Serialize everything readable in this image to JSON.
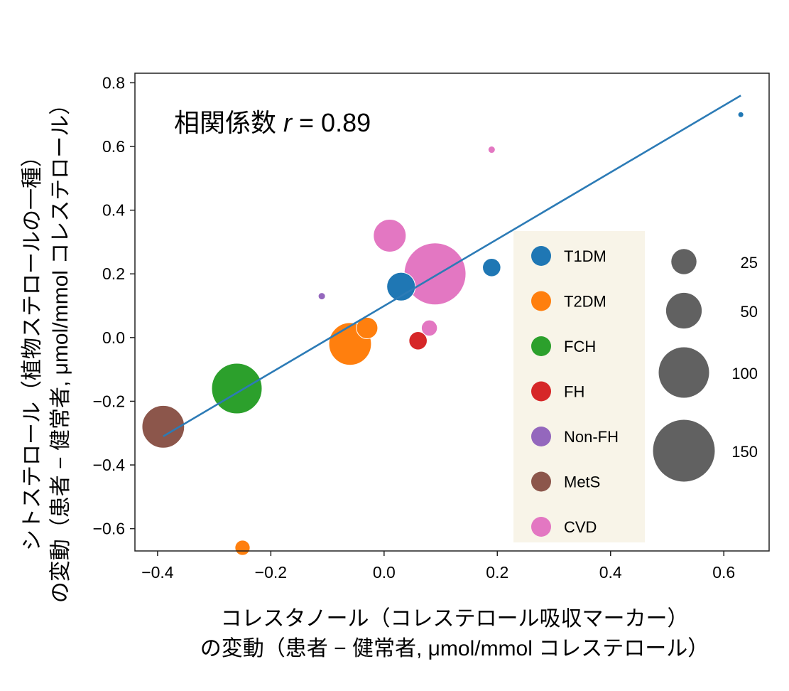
{
  "chart_data": {
    "type": "scatter",
    "annotation": {
      "prefix": "相関係数 ",
      "var": "r",
      "suffix": " = 0.89"
    },
    "ylabel_lines": [
      "シトステロール（植物ステロールの一種）",
      "の変動（患者 − 健常者, μmol/mmol コレステロール）"
    ],
    "xlabel_lines": [
      "コレスタノール（コレステロール吸収マーカー）",
      "の変動（患者 − 健常者, μmol/mmol コレステロール）"
    ],
    "xlim": [
      -0.44,
      0.68
    ],
    "ylim": [
      -0.67,
      0.83
    ],
    "xticks": [
      -0.4,
      -0.2,
      0.0,
      0.2,
      0.4,
      0.6
    ],
    "xtick_labels": [
      "−0.4",
      "−0.2",
      "0.0",
      "0.2",
      "0.4",
      "0.6"
    ],
    "yticks": [
      0.8,
      0.6,
      0.4,
      0.2,
      0.0,
      -0.2,
      -0.4,
      -0.6
    ],
    "ytick_labels": [
      "0.8",
      "0.6",
      "0.4",
      "0.2",
      "0.0",
      "−0.2",
      "−0.4",
      "−0.6"
    ],
    "grid": false,
    "legend_placement": "center-right",
    "legend_background": "#f8f4e8",
    "groups": [
      {
        "name": "T1DM",
        "color": "#1f77b4"
      },
      {
        "name": "T2DM",
        "color": "#ff7f0e"
      },
      {
        "name": "FCH",
        "color": "#2ca02c"
      },
      {
        "name": "FH",
        "color": "#d62728"
      },
      {
        "name": "Non-FH",
        "color": "#9467bd"
      },
      {
        "name": "MetS",
        "color": "#8c564b"
      },
      {
        "name": "CVD",
        "color": "#e377c2"
      }
    ],
    "size_legend": {
      "color": "#616161",
      "values": [
        25,
        50,
        100,
        150
      ],
      "labels": [
        "25",
        "50",
        "100",
        "150"
      ]
    },
    "points": [
      {
        "group": "CVD",
        "x": 0.09,
        "y": 0.2,
        "size": 150
      },
      {
        "group": "FCH",
        "x": -0.26,
        "y": -0.16,
        "size": 100
      },
      {
        "group": "MetS",
        "x": -0.39,
        "y": -0.28,
        "size": 71
      },
      {
        "group": "T2DM",
        "x": -0.06,
        "y": -0.02,
        "size": 71
      },
      {
        "group": "CVD",
        "x": 0.01,
        "y": 0.32,
        "size": 42
      },
      {
        "group": "T1DM",
        "x": 0.03,
        "y": 0.16,
        "size": 32
      },
      {
        "group": "T2DM",
        "x": -0.03,
        "y": 0.03,
        "size": 18
      },
      {
        "group": "T1DM",
        "x": 0.19,
        "y": 0.22,
        "size": 13
      },
      {
        "group": "FH",
        "x": 0.06,
        "y": -0.01,
        "size": 13
      },
      {
        "group": "CVD",
        "x": 0.08,
        "y": 0.03,
        "size": 10
      },
      {
        "group": "T2DM",
        "x": -0.25,
        "y": -0.66,
        "size": 9
      },
      {
        "group": "Non-FH",
        "x": -0.11,
        "y": 0.13,
        "size": 2
      },
      {
        "group": "CVD",
        "x": 0.19,
        "y": 0.59,
        "size": 2
      },
      {
        "group": "T1DM",
        "x": 0.63,
        "y": 0.7,
        "size": 1.3
      }
    ],
    "regression_line": {
      "color": "#2c7bb6",
      "x": [
        -0.39,
        0.63
      ],
      "y": [
        -0.31,
        0.76
      ]
    }
  }
}
